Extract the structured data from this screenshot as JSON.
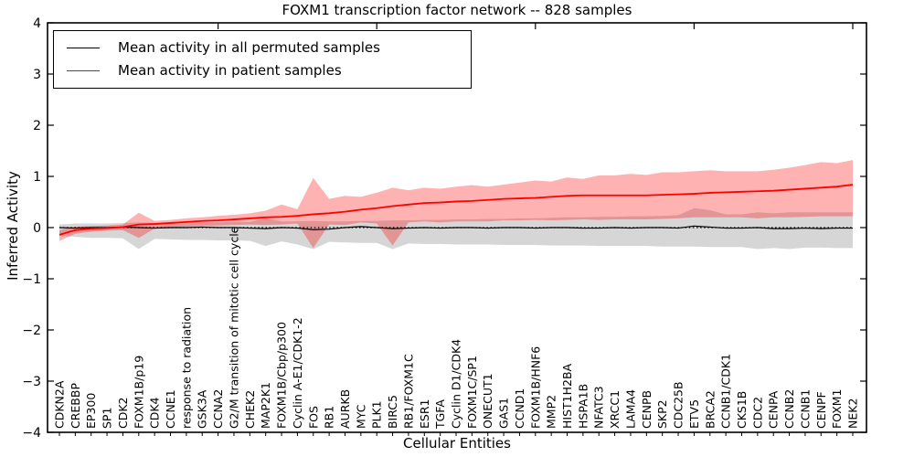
{
  "figure": {
    "title": "FOXM1 transcription factor network -- 828 samples",
    "xlabel": "Cellular Entities",
    "ylabel": "Inferred Activity"
  },
  "legend": {
    "items": [
      {
        "label": "Mean activity in all permuted samples",
        "color": "#000000"
      },
      {
        "label": "Mean activity in patient samples",
        "color": "#ff0000"
      }
    ]
  },
  "chart_data": {
    "type": "line",
    "title": "FOXM1 transcription factor network -- 828 samples",
    "xlabel": "Cellular Entities",
    "ylabel": "Inferred Activity",
    "ylim": [
      -4,
      4
    ],
    "yticks": [
      -4,
      -3,
      -2,
      -1,
      0,
      1,
      2,
      3,
      4
    ],
    "ytick_labels": [
      "−4",
      "−3",
      "−2",
      "−1",
      "0",
      "1",
      "2",
      "3",
      "4"
    ],
    "grid": false,
    "legend_position": "upper left",
    "zero_line": true,
    "categories": [
      "CDKN2A",
      "CREBBP",
      "EP300",
      "SP1",
      "CDK2",
      "FOXM1B/p19",
      "CDK4",
      "CCNE1",
      "response to radiation",
      "GSK3A",
      "CCNA2",
      "G2/M transition of mitotic cell cycle",
      "CHEK2",
      "MAP2K1",
      "FOXM1B/Cbp/p300",
      "Cyclin A-E1/CDK1-2",
      "FOS",
      "RB1",
      "AURKB",
      "MYC",
      "PLK1",
      "BIRC5",
      "RB1/FOXM1C",
      "ESR1",
      "TGFA",
      "Cyclin D1/CDK4",
      "FOXM1C/SP1",
      "ONECUT1",
      "GAS1",
      "CCND1",
      "FOXM1B/HNF6",
      "MMP2",
      "HIST1H2BA",
      "HSPA1B",
      "NFATC3",
      "XRCC1",
      "LAMA4",
      "CENPB",
      "SKP2",
      "CDC25B",
      "ETV5",
      "BRCA2",
      "CCNB1/CDK1",
      "CKS1B",
      "CDC2",
      "CENPA",
      "CCNB2",
      "CCNB1",
      "CENPF",
      "FOXM1",
      "NEK2"
    ],
    "series": [
      {
        "name": "Mean activity in all permuted samples",
        "color": "#000000",
        "values": [
          0.0,
          -0.01,
          0.0,
          0.0,
          0.01,
          0.0,
          -0.01,
          0.0,
          0.0,
          0.01,
          0.0,
          0.0,
          -0.01,
          -0.02,
          0.0,
          -0.01,
          -0.04,
          -0.03,
          0.0,
          0.02,
          0.0,
          -0.02,
          -0.01,
          0.0,
          -0.01,
          0.0,
          0.0,
          -0.01,
          0.0,
          0.0,
          -0.01,
          0.0,
          0.0,
          -0.01,
          -0.01,
          0.0,
          -0.01,
          0.0,
          0.0,
          -0.01,
          0.03,
          0.01,
          -0.01,
          -0.01,
          0.0,
          -0.02,
          -0.02,
          -0.01,
          -0.02,
          -0.01,
          -0.01
        ]
      },
      {
        "name": "Mean activity in patient samples",
        "color": "#ff0000",
        "values": [
          -0.14,
          -0.05,
          -0.02,
          -0.01,
          0.01,
          0.06,
          0.07,
          0.09,
          0.11,
          0.13,
          0.14,
          0.16,
          0.18,
          0.2,
          0.21,
          0.23,
          0.26,
          0.28,
          0.31,
          0.35,
          0.38,
          0.42,
          0.45,
          0.48,
          0.49,
          0.51,
          0.52,
          0.54,
          0.56,
          0.57,
          0.58,
          0.6,
          0.62,
          0.63,
          0.63,
          0.63,
          0.63,
          0.63,
          0.64,
          0.65,
          0.66,
          0.68,
          0.69,
          0.7,
          0.71,
          0.72,
          0.74,
          0.76,
          0.78,
          0.8,
          0.84
        ]
      }
    ],
    "bands": [
      {
        "name": "permuted samples range",
        "color": "rgba(128,128,128,0.32)",
        "upper": [
          0.06,
          0.08,
          0.08,
          0.08,
          0.09,
          0.1,
          0.09,
          0.09,
          0.1,
          0.1,
          0.11,
          0.11,
          0.11,
          0.18,
          0.12,
          0.12,
          0.13,
          0.12,
          0.12,
          0.13,
          0.13,
          0.14,
          0.14,
          0.15,
          0.15,
          0.16,
          0.16,
          0.17,
          0.17,
          0.18,
          0.18,
          0.19,
          0.2,
          0.2,
          0.21,
          0.21,
          0.22,
          0.22,
          0.23,
          0.24,
          0.38,
          0.34,
          0.26,
          0.26,
          0.3,
          0.28,
          0.3,
          0.3,
          0.3,
          0.3,
          0.3
        ],
        "lower": [
          -0.16,
          -0.18,
          -0.2,
          -0.2,
          -0.21,
          -0.42,
          -0.22,
          -0.23,
          -0.24,
          -0.24,
          -0.25,
          -0.25,
          -0.26,
          -0.36,
          -0.27,
          -0.33,
          -0.42,
          -0.28,
          -0.29,
          -0.3,
          -0.3,
          -0.42,
          -0.31,
          -0.32,
          -0.32,
          -0.33,
          -0.33,
          -0.33,
          -0.34,
          -0.34,
          -0.34,
          -0.35,
          -0.35,
          -0.35,
          -0.36,
          -0.36,
          -0.36,
          -0.36,
          -0.37,
          -0.37,
          -0.37,
          -0.38,
          -0.38,
          -0.38,
          -0.42,
          -0.4,
          -0.42,
          -0.39,
          -0.39,
          -0.4,
          -0.4
        ]
      },
      {
        "name": "patient samples range",
        "color": "rgba(255,0,0,0.30)",
        "upper": [
          -0.05,
          0.02,
          0.03,
          0.04,
          0.06,
          0.29,
          0.13,
          0.15,
          0.18,
          0.2,
          0.23,
          0.25,
          0.28,
          0.33,
          0.45,
          0.36,
          0.97,
          0.56,
          0.62,
          0.6,
          0.68,
          0.78,
          0.73,
          0.78,
          0.76,
          0.8,
          0.83,
          0.8,
          0.84,
          0.88,
          0.92,
          0.9,
          0.98,
          0.95,
          1.02,
          1.02,
          1.05,
          1.03,
          1.08,
          1.08,
          1.1,
          1.12,
          1.1,
          1.1,
          1.1,
          1.13,
          1.17,
          1.22,
          1.28,
          1.26,
          1.32
        ],
        "lower": [
          -0.26,
          -0.12,
          -0.08,
          -0.06,
          -0.05,
          -0.2,
          -0.02,
          0.0,
          0.02,
          0.03,
          0.04,
          0.05,
          0.06,
          0.05,
          0.06,
          0.08,
          -0.4,
          0.06,
          0.05,
          0.1,
          0.08,
          -0.35,
          0.1,
          0.12,
          0.1,
          0.12,
          0.12,
          0.12,
          0.14,
          0.14,
          0.15,
          0.14,
          0.15,
          0.16,
          0.15,
          0.16,
          0.16,
          0.16,
          0.17,
          0.18,
          0.2,
          0.2,
          0.2,
          0.2,
          0.18,
          0.2,
          0.2,
          0.21,
          0.22,
          0.22,
          0.22
        ]
      }
    ]
  }
}
